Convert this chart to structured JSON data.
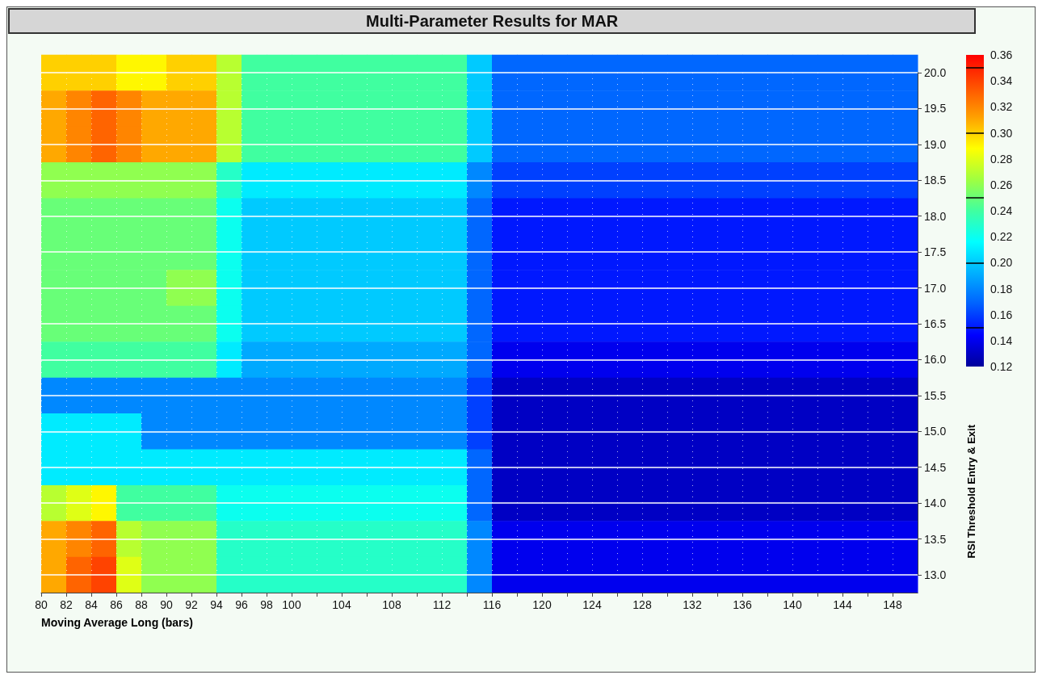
{
  "chart_data": {
    "type": "heatmap",
    "title": "Multi-Parameter Results for MAR",
    "xlabel": "Moving Average Long (bars)",
    "ylabel": "RSI Threshold Entry & Exit",
    "x": [
      81,
      83,
      85,
      87,
      89,
      91,
      93,
      95,
      97,
      99,
      101,
      103,
      105,
      107,
      109,
      111,
      113,
      115,
      117,
      119,
      121,
      123,
      125,
      127,
      129,
      131,
      133,
      135,
      137,
      139,
      141,
      143,
      145,
      147,
      149
    ],
    "y_categories": [
      "20.0",
      "19.5",
      "19.0",
      "18.5",
      "18.0",
      "17.5",
      "17.0",
      "16.5",
      "16.0",
      "15.5",
      "15.0",
      "14.5",
      "14.0",
      "13.5",
      "13.0"
    ],
    "cells": [
      [
        0.3,
        0.3,
        0.3,
        0.29,
        0.29,
        0.3,
        0.3,
        0.27,
        0.24,
        0.24,
        0.24,
        0.24,
        0.24,
        0.24,
        0.24,
        0.24,
        0.24,
        0.2,
        0.17,
        0.17,
        0.17,
        0.17,
        0.17,
        0.17,
        0.17,
        0.17,
        0.17,
        0.17,
        0.17,
        0.17,
        0.17,
        0.17,
        0.17,
        0.17,
        0.17
      ],
      [
        0.31,
        0.32,
        0.33,
        0.32,
        0.31,
        0.31,
        0.31,
        0.27,
        0.24,
        0.24,
        0.24,
        0.24,
        0.24,
        0.24,
        0.24,
        0.24,
        0.24,
        0.2,
        0.17,
        0.17,
        0.17,
        0.17,
        0.17,
        0.17,
        0.17,
        0.17,
        0.17,
        0.17,
        0.17,
        0.17,
        0.17,
        0.17,
        0.17,
        0.17,
        0.17
      ],
      [
        0.31,
        0.32,
        0.33,
        0.32,
        0.31,
        0.31,
        0.31,
        0.27,
        0.24,
        0.24,
        0.24,
        0.24,
        0.24,
        0.24,
        0.24,
        0.24,
        0.24,
        0.2,
        0.17,
        0.17,
        0.17,
        0.17,
        0.17,
        0.17,
        0.17,
        0.17,
        0.17,
        0.17,
        0.17,
        0.17,
        0.17,
        0.17,
        0.17,
        0.17,
        0.17
      ],
      [
        0.26,
        0.26,
        0.26,
        0.26,
        0.26,
        0.26,
        0.26,
        0.23,
        0.21,
        0.21,
        0.21,
        0.21,
        0.21,
        0.21,
        0.21,
        0.21,
        0.21,
        0.18,
        0.16,
        0.16,
        0.16,
        0.16,
        0.16,
        0.16,
        0.16,
        0.16,
        0.16,
        0.16,
        0.16,
        0.16,
        0.16,
        0.16,
        0.16,
        0.16,
        0.16
      ],
      [
        0.25,
        0.25,
        0.25,
        0.25,
        0.25,
        0.25,
        0.25,
        0.22,
        0.2,
        0.2,
        0.2,
        0.2,
        0.2,
        0.2,
        0.2,
        0.2,
        0.2,
        0.17,
        0.15,
        0.15,
        0.15,
        0.15,
        0.15,
        0.15,
        0.15,
        0.15,
        0.15,
        0.15,
        0.15,
        0.15,
        0.15,
        0.15,
        0.15,
        0.15,
        0.15
      ],
      [
        0.25,
        0.25,
        0.25,
        0.25,
        0.25,
        0.25,
        0.25,
        0.22,
        0.2,
        0.2,
        0.2,
        0.2,
        0.2,
        0.2,
        0.2,
        0.2,
        0.2,
        0.17,
        0.15,
        0.15,
        0.15,
        0.15,
        0.15,
        0.15,
        0.15,
        0.15,
        0.15,
        0.15,
        0.15,
        0.15,
        0.15,
        0.15,
        0.15,
        0.15,
        0.15
      ],
      [
        0.25,
        0.25,
        0.25,
        0.25,
        0.25,
        0.26,
        0.26,
        0.22,
        0.2,
        0.2,
        0.2,
        0.2,
        0.2,
        0.2,
        0.2,
        0.2,
        0.2,
        0.17,
        0.15,
        0.15,
        0.15,
        0.15,
        0.15,
        0.15,
        0.15,
        0.15,
        0.15,
        0.15,
        0.15,
        0.15,
        0.15,
        0.15,
        0.15,
        0.15,
        0.15
      ],
      [
        0.25,
        0.25,
        0.25,
        0.25,
        0.25,
        0.25,
        0.25,
        0.22,
        0.2,
        0.2,
        0.2,
        0.2,
        0.2,
        0.2,
        0.2,
        0.2,
        0.2,
        0.17,
        0.15,
        0.15,
        0.15,
        0.15,
        0.15,
        0.15,
        0.15,
        0.15,
        0.15,
        0.15,
        0.15,
        0.15,
        0.15,
        0.15,
        0.15,
        0.15,
        0.15
      ],
      [
        0.24,
        0.24,
        0.24,
        0.24,
        0.24,
        0.24,
        0.24,
        0.21,
        0.19,
        0.19,
        0.19,
        0.19,
        0.19,
        0.19,
        0.19,
        0.19,
        0.19,
        0.17,
        0.14,
        0.14,
        0.14,
        0.14,
        0.14,
        0.14,
        0.14,
        0.14,
        0.14,
        0.14,
        0.14,
        0.14,
        0.14,
        0.14,
        0.14,
        0.14,
        0.14
      ],
      [
        0.18,
        0.18,
        0.18,
        0.18,
        0.18,
        0.18,
        0.18,
        0.18,
        0.18,
        0.18,
        0.18,
        0.18,
        0.18,
        0.18,
        0.18,
        0.18,
        0.18,
        0.16,
        0.13,
        0.13,
        0.13,
        0.13,
        0.13,
        0.13,
        0.13,
        0.13,
        0.13,
        0.13,
        0.13,
        0.13,
        0.13,
        0.13,
        0.13,
        0.13,
        0.13
      ],
      [
        0.21,
        0.21,
        0.21,
        0.21,
        0.18,
        0.18,
        0.18,
        0.18,
        0.18,
        0.18,
        0.18,
        0.18,
        0.18,
        0.18,
        0.18,
        0.18,
        0.18,
        0.16,
        0.13,
        0.13,
        0.13,
        0.13,
        0.13,
        0.13,
        0.13,
        0.13,
        0.13,
        0.13,
        0.13,
        0.13,
        0.13,
        0.13,
        0.13,
        0.13,
        0.13
      ],
      [
        0.21,
        0.21,
        0.21,
        0.21,
        0.21,
        0.21,
        0.21,
        0.21,
        0.21,
        0.21,
        0.21,
        0.21,
        0.21,
        0.21,
        0.21,
        0.21,
        0.21,
        0.17,
        0.13,
        0.13,
        0.13,
        0.13,
        0.13,
        0.13,
        0.13,
        0.13,
        0.13,
        0.13,
        0.13,
        0.13,
        0.13,
        0.13,
        0.13,
        0.13,
        0.13
      ],
      [
        0.27,
        0.28,
        0.29,
        0.24,
        0.24,
        0.24,
        0.24,
        0.22,
        0.22,
        0.22,
        0.22,
        0.22,
        0.22,
        0.22,
        0.22,
        0.22,
        0.22,
        0.17,
        0.13,
        0.13,
        0.13,
        0.13,
        0.13,
        0.13,
        0.13,
        0.13,
        0.13,
        0.13,
        0.13,
        0.13,
        0.13,
        0.13,
        0.13,
        0.13,
        0.13
      ],
      [
        0.31,
        0.32,
        0.33,
        0.27,
        0.26,
        0.26,
        0.26,
        0.23,
        0.23,
        0.23,
        0.23,
        0.23,
        0.23,
        0.23,
        0.23,
        0.23,
        0.23,
        0.18,
        0.14,
        0.14,
        0.14,
        0.14,
        0.14,
        0.14,
        0.14,
        0.14,
        0.14,
        0.14,
        0.14,
        0.14,
        0.14,
        0.14,
        0.14,
        0.14,
        0.14
      ],
      [
        0.31,
        0.33,
        0.34,
        0.28,
        0.26,
        0.26,
        0.26,
        0.23,
        0.23,
        0.23,
        0.23,
        0.23,
        0.23,
        0.23,
        0.23,
        0.23,
        0.23,
        0.18,
        0.14,
        0.14,
        0.14,
        0.14,
        0.14,
        0.14,
        0.14,
        0.14,
        0.14,
        0.14,
        0.14,
        0.14,
        0.14,
        0.14,
        0.14,
        0.14,
        0.14
      ]
    ],
    "xlim": [
      80,
      150
    ],
    "xticks": [
      80,
      82,
      84,
      86,
      88,
      90,
      92,
      94,
      96,
      98,
      100,
      {
        "value": 102,
        "label": null
      },
      104,
      {
        "value": 106,
        "label": null
      },
      108,
      {
        "value": 110,
        "label": null
      },
      112,
      {
        "value": 114,
        "label": null
      },
      116,
      {
        "value": 118,
        "label": null
      },
      120,
      {
        "value": 122,
        "label": null
      },
      124,
      {
        "value": 126,
        "label": null
      },
      128,
      {
        "value": 130,
        "label": null
      },
      132,
      {
        "value": 134,
        "label": null
      },
      136,
      {
        "value": 138,
        "label": null
      },
      140,
      {
        "value": 142,
        "label": null
      },
      144,
      {
        "value": 146,
        "label": null
      },
      148
    ],
    "clim": [
      0.12,
      0.36
    ],
    "cticks": [
      0.12,
      0.14,
      0.16,
      0.18,
      {
        "value": 0.2,
        "label": "0.20"
      },
      0.22,
      0.24,
      0.26,
      0.28,
      {
        "value": 0.3,
        "label": "0.30"
      },
      0.32,
      0.34,
      0.36
    ],
    "grid": true
  }
}
